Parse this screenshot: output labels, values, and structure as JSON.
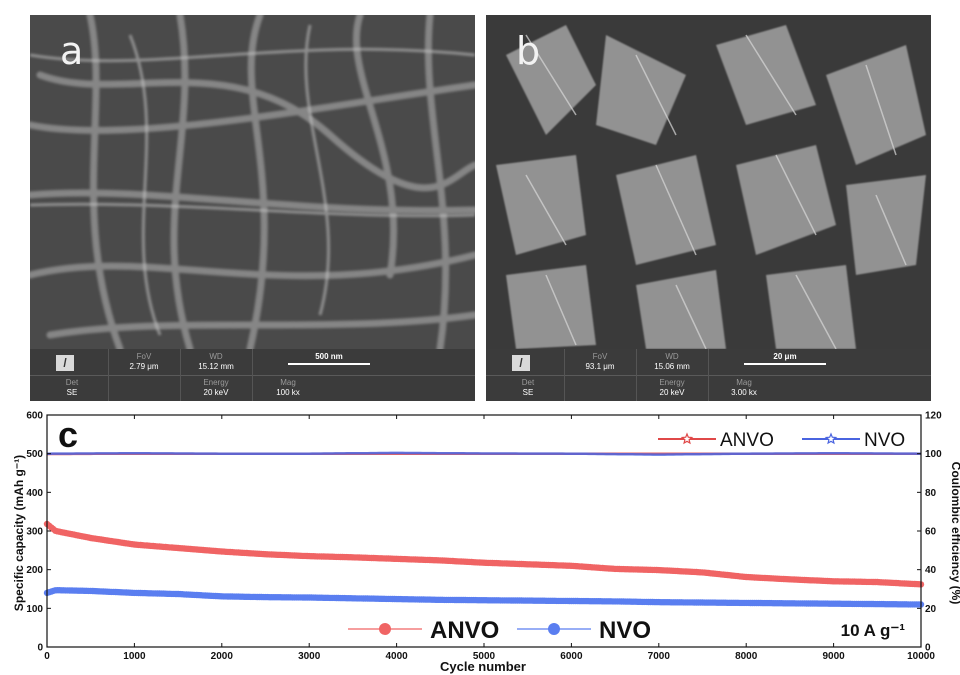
{
  "sem_a": {
    "label": "a",
    "fov_label": "FoV",
    "fov_value": "2.79 μm",
    "wd_label": "WD",
    "wd_value": "15.12 mm",
    "scale_label": "500 nm",
    "det_label": "Det",
    "det_value": "SE",
    "energy_label": "Energy",
    "energy_value": "20 keV",
    "mag_label": "Mag",
    "mag_value": "100 kx"
  },
  "sem_b": {
    "label": "b",
    "fov_label": "FoV",
    "fov_value": "93.1 μm",
    "wd_label": "WD",
    "wd_value": "15.06 mm",
    "scale_label": "20 μm",
    "det_label": "Det",
    "det_value": "SE",
    "energy_label": "Energy",
    "energy_value": "20 keV",
    "mag_label": "Mag",
    "mag_value": "3.00 kx"
  },
  "chart_data": {
    "type": "scatter",
    "panel_label": "c",
    "xlabel": "Cycle number",
    "ylabel": "Specific capacity (mAh g⁻¹)",
    "y2label": "Coulombic efficiency (%)",
    "xlim": [
      0,
      10000
    ],
    "ylim": [
      0,
      600
    ],
    "y2lim": [
      0,
      120
    ],
    "xticks": [
      0,
      1000,
      2000,
      3000,
      4000,
      5000,
      6000,
      7000,
      8000,
      9000,
      10000
    ],
    "yticks": [
      0,
      100,
      200,
      300,
      400,
      500,
      600
    ],
    "y2ticks": [
      0,
      20,
      40,
      60,
      80,
      100,
      120
    ],
    "annotation": "10 A g⁻¹",
    "legend_capacity_position": "bottom-center",
    "legend_efficiency_position": "top-right",
    "series": [
      {
        "name": "ANVO",
        "kind": "capacity",
        "axis": "left",
        "color": "#f06464",
        "x": [
          0,
          100,
          500,
          1000,
          1500,
          2000,
          2500,
          3000,
          3500,
          4000,
          4500,
          5000,
          5500,
          6000,
          6500,
          7000,
          7500,
          8000,
          8500,
          9000,
          9500,
          10000
        ],
        "y": [
          318,
          300,
          282,
          265,
          256,
          247,
          240,
          235,
          232,
          228,
          224,
          218,
          214,
          210,
          202,
          199,
          193,
          181,
          175,
          170,
          168,
          162
        ]
      },
      {
        "name": "NVO",
        "kind": "capacity",
        "axis": "left",
        "color": "#5a7ef0",
        "x": [
          0,
          100,
          500,
          1000,
          1500,
          2000,
          2500,
          3000,
          3500,
          4000,
          4500,
          5000,
          5500,
          6000,
          6500,
          7000,
          7500,
          8000,
          8500,
          9000,
          9500,
          10000
        ],
        "y": [
          140,
          147,
          145,
          140,
          137,
          131,
          129,
          128,
          126,
          124,
          122,
          121,
          120,
          119,
          118,
          116,
          115,
          114,
          113,
          112,
          111,
          110
        ]
      },
      {
        "name": "ANVO",
        "kind": "efficiency",
        "axis": "right",
        "color": "#e04848",
        "x": [
          0,
          1000,
          2000,
          3000,
          4000,
          5000,
          6000,
          7000,
          8000,
          9000,
          10000
        ],
        "y": [
          99.8,
          100,
          100,
          100,
          100,
          100,
          100,
          100,
          100,
          100,
          100
        ]
      },
      {
        "name": "NVO",
        "kind": "efficiency",
        "axis": "right",
        "color": "#4a64e0",
        "x": [
          0,
          1000,
          2000,
          3000,
          4000,
          5000,
          6000,
          7000,
          8000,
          9000,
          10000
        ],
        "y": [
          100,
          100.2,
          100,
          100,
          100.4,
          100.1,
          100,
          99.5,
          100,
          100.2,
          100
        ]
      }
    ]
  }
}
